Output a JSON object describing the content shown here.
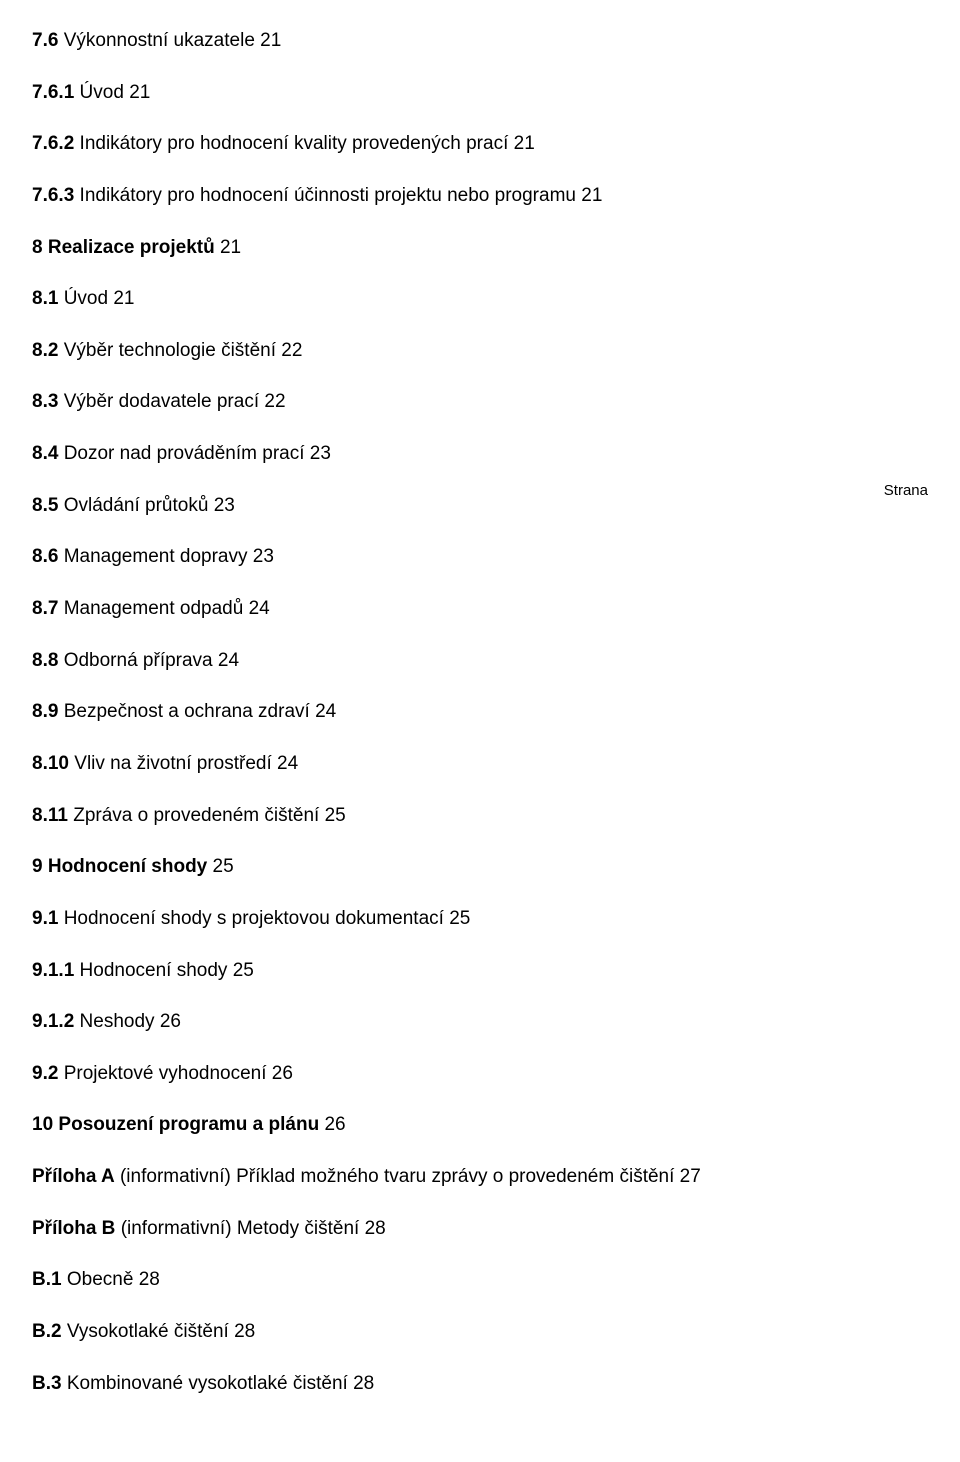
{
  "strana_label": "Strana",
  "entries": [
    {
      "num": "7.6",
      "title": "Výkonnostní ukazatele",
      "page": "21",
      "bold": false
    },
    {
      "num": "7.6.1",
      "title": "Úvod",
      "page": "21",
      "bold": false
    },
    {
      "num": "7.6.2",
      "title": "Indikátory pro hodnocení kvality provedených prací",
      "page": "21",
      "bold": false
    },
    {
      "num": "7.6.3",
      "title": "Indikátory pro hodnocení účinnosti projektu nebo programu",
      "page": "21",
      "bold": false
    },
    {
      "num": "8",
      "title": "Realizace projektů",
      "page": "21",
      "bold": true
    },
    {
      "num": "8.1",
      "title": "Úvod",
      "page": "21",
      "bold": false
    },
    {
      "num": "8.2",
      "title": "Výběr technologie čištění",
      "page": "22",
      "bold": false
    },
    {
      "num": "8.3",
      "title": "Výběr dodavatele prací",
      "page": "22",
      "bold": false
    },
    {
      "num": "8.4",
      "title": "Dozor nad prováděním prací",
      "page": "23",
      "bold": false
    },
    {
      "strana_break": true
    },
    {
      "num": "8.5",
      "title": "Ovládání průtoků",
      "page": "23",
      "bold": false
    },
    {
      "num": "8.6",
      "title": "Management dopravy",
      "page": "23",
      "bold": false
    },
    {
      "num": "8.7",
      "title": "Management odpadů",
      "page": "24",
      "bold": false
    },
    {
      "num": "8.8",
      "title": "Odborná příprava",
      "page": "24",
      "bold": false
    },
    {
      "num": "8.9",
      "title": "Bezpečnost a ochrana zdraví",
      "page": "24",
      "bold": false
    },
    {
      "num": "8.10",
      "title": "Vliv na životní prostředí",
      "page": "24",
      "bold": false
    },
    {
      "num": "8.11",
      "title": "Zpráva o provedeném čištění",
      "page": "25",
      "bold": false
    },
    {
      "num": "9",
      "title": "Hodnocení shody",
      "page": "25",
      "bold": true
    },
    {
      "num": "9.1",
      "title": "Hodnocení shody s projektovou dokumentací",
      "page": "25",
      "bold": false
    },
    {
      "num": "9.1.1",
      "title": "Hodnocení shody",
      "page": "25",
      "bold": false
    },
    {
      "num": "9.1.2",
      "title": "Neshody",
      "page": "26",
      "bold": false
    },
    {
      "num": "9.2",
      "title": "Projektové vyhodnocení",
      "page": "26",
      "bold": false
    },
    {
      "num": "10",
      "title": "Posouzení programu a plánu",
      "page": "26",
      "bold": true
    },
    {
      "annex": true,
      "prefix": "Příloha A",
      "note": "(informativní)",
      "title": "Příklad možného tvaru zprávy o provedeném čištění",
      "page": "27"
    },
    {
      "annex": true,
      "prefix": "Příloha B",
      "note": "(informativní)",
      "title": "Metody čištění",
      "page": "28"
    },
    {
      "num": "B.1",
      "title": "Obecně",
      "page": "28",
      "bold": false
    },
    {
      "num": "B.2",
      "title": "Vysokotlaké čištění",
      "page": "28",
      "bold": false
    },
    {
      "num": "B.3",
      "title": "Kombinované vysokotlaké čistění",
      "page": "28",
      "bold": false
    }
  ]
}
